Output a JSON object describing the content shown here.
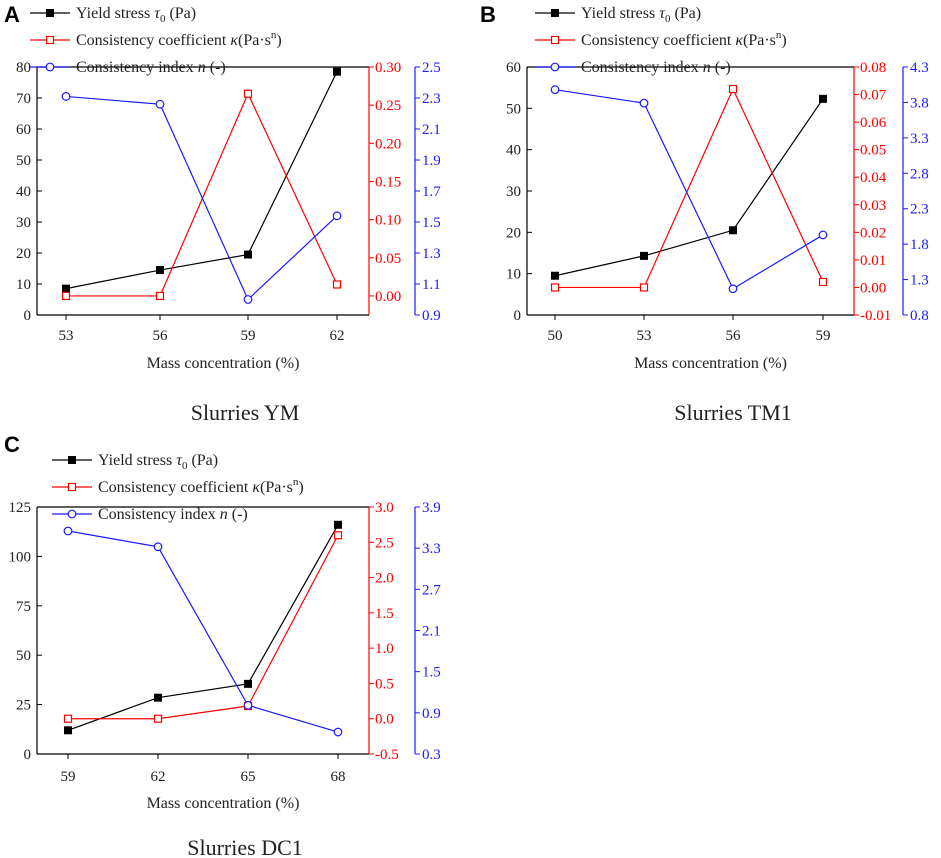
{
  "colors": {
    "yield": "#000000",
    "consistency_coefficient": "#ff0000",
    "consistency_index": "#1a1aff"
  },
  "chart_data": [
    {
      "panel": "A",
      "caption": "Slurries YM",
      "type": "line",
      "xlabel": "Mass concentration (%)",
      "categories": [
        "53",
        "56",
        "59",
        "62"
      ],
      "legend": [
        {
          "series": "yield",
          "prefix": "Yield stress ",
          "symbol": "τ",
          "sub": "0",
          "suffix": " (Pa)"
        },
        {
          "series": "kappa",
          "prefix": "Consistency coefficient ",
          "symbol": "κ",
          "unit_base": "(Pa·s",
          "sup": "n",
          "unit_end": ")"
        },
        {
          "series": "n",
          "prefix": "Consistency index ",
          "symbol": "n",
          "suffix": " (-)"
        }
      ],
      "axes": {
        "left": {
          "min": 0,
          "max": 80,
          "ticks": [
            "0",
            "10",
            "20",
            "30",
            "40",
            "50",
            "60",
            "70",
            "80"
          ]
        },
        "right1": {
          "min": -0.025,
          "max": 0.3,
          "ticks": [
            "0.00",
            "0.05",
            "0.10",
            "0.15",
            "0.20",
            "0.25",
            "0.30"
          ]
        },
        "right2": {
          "min": 0.9,
          "max": 2.5,
          "ticks": [
            "0.9",
            "1.1",
            "1.3",
            "1.5",
            "1.7",
            "1.9",
            "2.1",
            "2.3",
            "2.5"
          ]
        }
      },
      "series": [
        {
          "key": "yield",
          "name": "Yield stress τ0 (Pa)",
          "axis": "left",
          "marker": "filled-square",
          "values": [
            8.5,
            14.5,
            19.5,
            78.5
          ]
        },
        {
          "key": "kappa",
          "name": "Consistency coefficient κ (Pa·s^n)",
          "axis": "right1",
          "marker": "open-square",
          "values": [
            0.0,
            0.0,
            0.265,
            0.015
          ]
        },
        {
          "key": "n",
          "name": "Consistency index n (-)",
          "axis": "right2",
          "marker": "open-circle",
          "values": [
            2.31,
            2.26,
            1.0,
            1.54
          ]
        }
      ]
    },
    {
      "panel": "B",
      "caption": "Slurries TM1",
      "type": "line",
      "xlabel": "Mass concentration (%)",
      "categories": [
        "50",
        "53",
        "56",
        "59"
      ],
      "legend": [
        {
          "series": "yield",
          "prefix": "Yield stress ",
          "symbol": "τ",
          "sub": "0",
          "suffix": " (Pa)"
        },
        {
          "series": "kappa",
          "prefix": "Consistency coefficient ",
          "symbol": "κ",
          "unit_base": "(Pa·s",
          "sup": "n",
          "unit_end": ")"
        },
        {
          "series": "n",
          "prefix": "Consistency index ",
          "symbol": "n",
          "suffix": " (-)"
        }
      ],
      "axes": {
        "left": {
          "min": 0,
          "max": 60,
          "ticks": [
            "0",
            "10",
            "20",
            "30",
            "40",
            "50",
            "60"
          ]
        },
        "right1": {
          "min": -0.01,
          "max": 0.08,
          "ticks": [
            "-0.01",
            "0.00",
            "0.01",
            "0.02",
            "0.03",
            "0.04",
            "0.05",
            "0.06",
            "0.07",
            "0.08"
          ]
        },
        "right2": {
          "min": 0.8,
          "max": 4.3,
          "ticks": [
            "0.8",
            "1.3",
            "1.8",
            "2.3",
            "2.8",
            "3.3",
            "3.8",
            "4.3"
          ]
        }
      },
      "series": [
        {
          "key": "yield",
          "name": "Yield stress τ0 (Pa)",
          "axis": "left",
          "marker": "filled-square",
          "values": [
            9.5,
            14.3,
            20.5,
            52.3
          ]
        },
        {
          "key": "kappa",
          "name": "Consistency coefficient κ (Pa·s^n)",
          "axis": "right1",
          "marker": "open-square",
          "values": [
            0.0,
            0.0,
            0.072,
            0.002
          ]
        },
        {
          "key": "n",
          "name": "Consistency index n (-)",
          "axis": "right2",
          "marker": "open-circle",
          "values": [
            3.98,
            3.79,
            1.17,
            1.93
          ]
        }
      ]
    },
    {
      "panel": "C",
      "caption": "Slurries DC1",
      "type": "line",
      "xlabel": "Mass concentration (%)",
      "categories": [
        "59",
        "62",
        "65",
        "68"
      ],
      "legend": [
        {
          "series": "yield",
          "prefix": "Yield stress ",
          "symbol": "τ",
          "sub": "0",
          "suffix": " (Pa)"
        },
        {
          "series": "kappa",
          "prefix": "Consistency coefficient ",
          "symbol": "κ",
          "unit_base": "(Pa·s",
          "sup": "n",
          "unit_end": ")"
        },
        {
          "series": "n",
          "prefix": "Consistency index ",
          "symbol": "n",
          "suffix": " (-)"
        }
      ],
      "axes": {
        "left": {
          "min": 0,
          "max": 125,
          "ticks": [
            "0",
            "25",
            "50",
            "75",
            "100",
            "125"
          ]
        },
        "right1": {
          "min": -0.5,
          "max": 3.0,
          "ticks": [
            "-0.5",
            "0.0",
            "0.5",
            "1.0",
            "1.5",
            "2.0",
            "2.5",
            "3.0"
          ]
        },
        "right2": {
          "min": 0.3,
          "max": 3.9,
          "ticks": [
            "0.3",
            "0.9",
            "1.5",
            "2.1",
            "2.7",
            "3.3",
            "3.9"
          ]
        }
      },
      "series": [
        {
          "key": "yield",
          "name": "Yield stress τ0 (Pa)",
          "axis": "left",
          "marker": "filled-square",
          "values": [
            12.0,
            28.5,
            35.5,
            116.0
          ]
        },
        {
          "key": "kappa",
          "name": "Consistency coefficient κ (Pa·s^n)",
          "axis": "right1",
          "marker": "open-square",
          "values": [
            0.0,
            0.0,
            0.18,
            2.6
          ]
        },
        {
          "key": "n",
          "name": "Consistency index n (-)",
          "axis": "right2",
          "marker": "open-circle",
          "values": [
            3.55,
            3.32,
            1.01,
            0.62
          ]
        }
      ]
    }
  ]
}
